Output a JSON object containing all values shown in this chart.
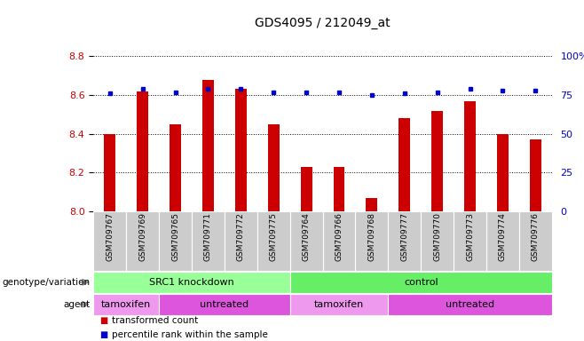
{
  "title": "GDS4095 / 212049_at",
  "samples": [
    "GSM709767",
    "GSM709769",
    "GSM709765",
    "GSM709771",
    "GSM709772",
    "GSM709775",
    "GSM709764",
    "GSM709766",
    "GSM709768",
    "GSM709777",
    "GSM709770",
    "GSM709773",
    "GSM709774",
    "GSM709776"
  ],
  "bar_values": [
    8.4,
    8.62,
    8.45,
    8.68,
    8.63,
    8.45,
    8.23,
    8.23,
    8.07,
    8.48,
    8.52,
    8.57,
    8.4,
    8.37
  ],
  "dot_values": [
    76,
    79,
    77,
    79,
    79,
    77,
    77,
    77,
    75,
    76,
    77,
    79,
    78,
    78
  ],
  "ylim": [
    8.0,
    8.8
  ],
  "yticks": [
    8.0,
    8.2,
    8.4,
    8.6,
    8.8
  ],
  "y2lim": [
    0,
    100
  ],
  "y2ticks": [
    0,
    25,
    50,
    75,
    100
  ],
  "bar_color": "#cc0000",
  "dot_color": "#0000cc",
  "bar_bottom": 8.0,
  "groups_genotype": [
    {
      "label": "SRC1 knockdown",
      "start": 0,
      "end": 6,
      "color": "#99ff99"
    },
    {
      "label": "control",
      "start": 6,
      "end": 14,
      "color": "#66ee66"
    }
  ],
  "groups_agent": [
    {
      "label": "tamoxifen",
      "start": 0,
      "end": 2,
      "color": "#ee99ee"
    },
    {
      "label": "untreated",
      "start": 2,
      "end": 6,
      "color": "#dd55dd"
    },
    {
      "label": "tamoxifen",
      "start": 6,
      "end": 9,
      "color": "#ee99ee"
    },
    {
      "label": "untreated",
      "start": 9,
      "end": 14,
      "color": "#dd55dd"
    }
  ],
  "legend_items": [
    {
      "label": "transformed count",
      "color": "#cc0000"
    },
    {
      "label": "percentile rank within the sample",
      "color": "#0000cc"
    }
  ],
  "sample_bg": "#cccccc",
  "title_fontsize": 10,
  "bar_width": 0.35
}
